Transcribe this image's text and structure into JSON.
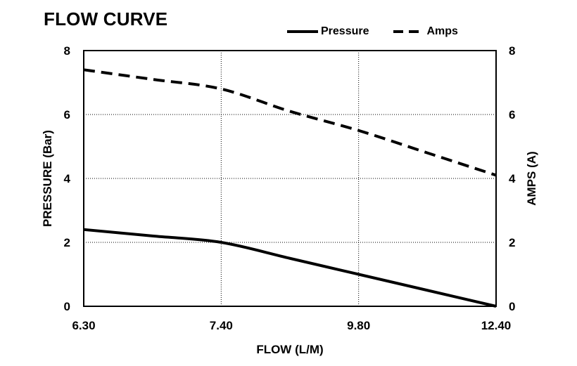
{
  "chart_data": {
    "type": "line",
    "title": "FLOW CURVE",
    "xlabel": "FLOW (L/M)",
    "ylabel": "PRESSURE (Bar)",
    "y2label": "AMPS (A)",
    "x_ticks": [
      "6.30",
      "7.40",
      "9.80",
      "12.40"
    ],
    "y_ticks": [
      "0",
      "2",
      "4",
      "6",
      "8"
    ],
    "y2_ticks": [
      "0",
      "2",
      "4",
      "6",
      "8"
    ],
    "ylim": [
      0,
      8
    ],
    "y2lim": [
      0,
      8
    ],
    "grid": true,
    "legend_position": "top-right",
    "series": [
      {
        "name": "Pressure",
        "style": "solid",
        "axis": "left",
        "x_index": [
          0,
          0.5,
          1,
          1.5,
          2,
          2.5,
          3
        ],
        "values": [
          2.4,
          2.2,
          2.0,
          1.5,
          1.0,
          0.5,
          0.0
        ]
      },
      {
        "name": "Amps",
        "style": "dashed",
        "axis": "right",
        "x_index": [
          0,
          0.5,
          1,
          1.5,
          2,
          2.5,
          3
        ],
        "values": [
          7.4,
          7.1,
          6.8,
          6.1,
          5.5,
          4.8,
          4.1
        ]
      }
    ],
    "color": "#000000"
  }
}
